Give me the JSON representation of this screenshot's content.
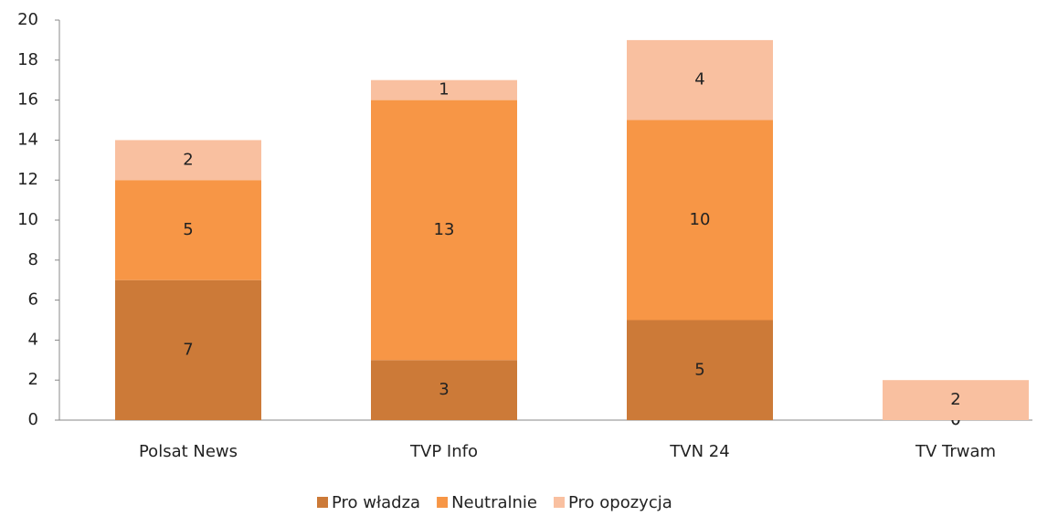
{
  "chart_data": {
    "type": "stacked_bar",
    "categories": [
      "Polsat News",
      "TVP Info",
      "TVN 24",
      "TV Trwam"
    ],
    "series": [
      {
        "name": "Pro władza",
        "color": "#cc7a38",
        "values": [
          7,
          3,
          5,
          0
        ]
      },
      {
        "name": "Neutralnie",
        "color": "#f79646",
        "values": [
          5,
          13,
          10,
          0
        ]
      },
      {
        "name": "Pro opozycja",
        "color": "#f9c0a0",
        "values": [
          2,
          1,
          4,
          2
        ]
      }
    ],
    "ylim": [
      0,
      20
    ],
    "yticks": [
      0,
      2,
      4,
      6,
      8,
      10,
      12,
      14,
      16,
      18,
      20
    ],
    "grid": false,
    "legend": "bottom"
  }
}
